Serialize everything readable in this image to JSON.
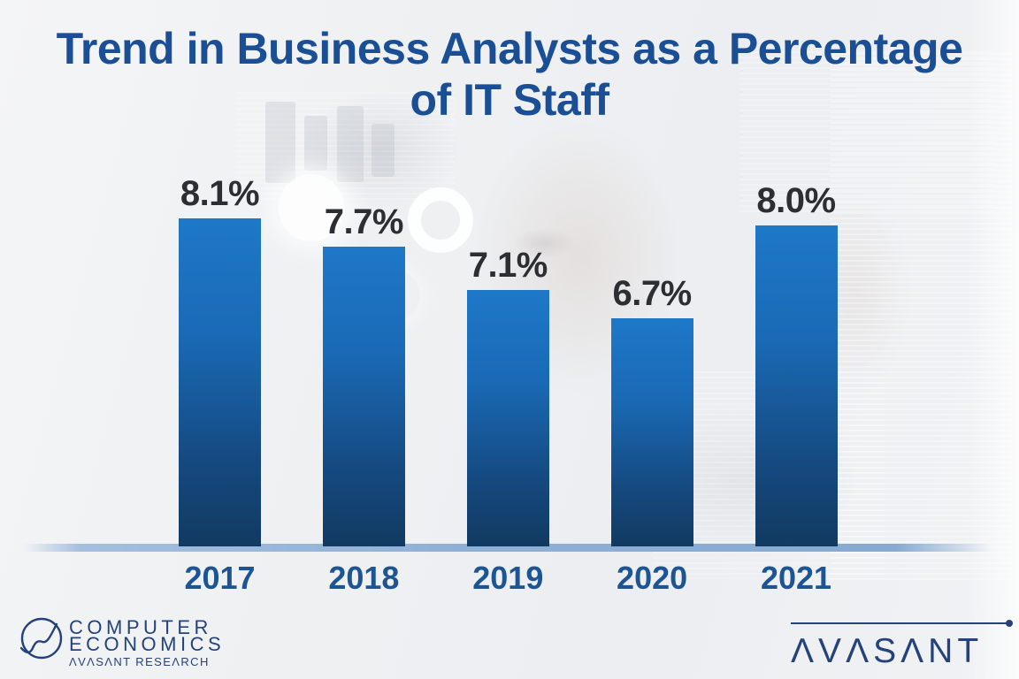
{
  "slide": {
    "title_line1": "Trend in Business Analysts as a Percentage",
    "title_line2": "of IT Staff"
  },
  "chart_data": {
    "type": "bar",
    "title": "Trend in Business Analysts as a Percentage of IT Staff",
    "categories": [
      "2017",
      "2018",
      "2019",
      "2020",
      "2021"
    ],
    "values": [
      8.1,
      7.7,
      7.1,
      6.7,
      8.0
    ],
    "value_labels": [
      "8.1%",
      "7.7%",
      "7.1%",
      "6.7%",
      "8.0%"
    ],
    "unit": "%",
    "xlabel": "",
    "ylabel": "",
    "layout_hints": {
      "value_labels_position": "above-bars",
      "y_axis": "hidden",
      "gridlines": false,
      "x_axis": "light-blue baseline band",
      "bars_not_zero_based": true
    }
  },
  "colors": {
    "title": "#1b4f95",
    "bar_top": "#1e78c8",
    "bar_bottom": "#123a61",
    "value_label": "#2d2e31",
    "year_label": "#1d5493",
    "baseline_band": "#8fb0d6",
    "logo_navy": "#26427d",
    "background": "#eef0f2"
  },
  "footer": {
    "computer_economics_logo": {
      "line1": "COMPUTER",
      "line2": "ECONOMICS",
      "line3": "ΛVΛSΛNT RESEΛRCH"
    },
    "avasant_logo": {
      "wordmark": "ΛVΛSΛNT"
    }
  }
}
